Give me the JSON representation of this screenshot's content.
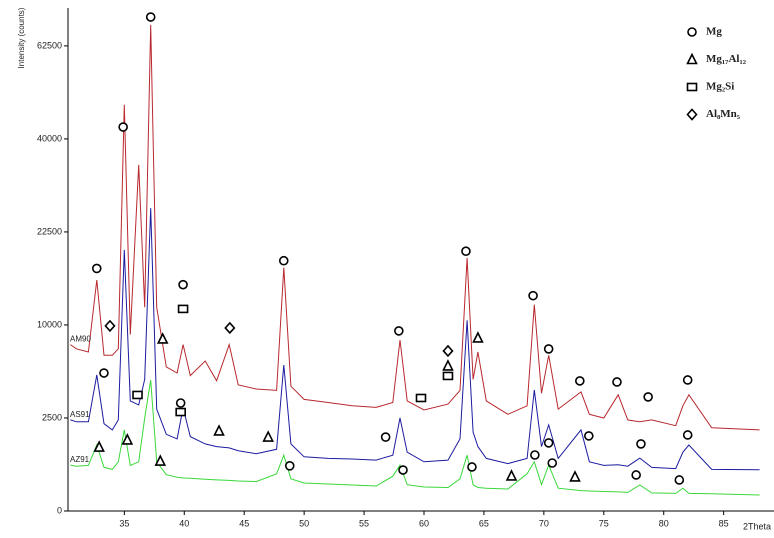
{
  "chart_data": {
    "type": "line",
    "y_label": "Intensity (counts)",
    "x_label": "2Theta",
    "xlim": [
      30.3,
      89.2
    ],
    "xticks": [
      35,
      40,
      45,
      50,
      55,
      60,
      65,
      70,
      75,
      80,
      85
    ],
    "ylim": [
      0,
      73100
    ],
    "yticks": [
      0,
      2500,
      10000,
      22500,
      40000,
      62500
    ],
    "yscale": "sqrt",
    "x": [
      30.5,
      31,
      32,
      32.7,
      33.3,
      34,
      34.5,
      35.0,
      35.5,
      36.2,
      36.7,
      37.2,
      37.7,
      38.5,
      39.4,
      39.9,
      40.5,
      41.75,
      42.7,
      43.75,
      44.5,
      46,
      47.7,
      48.3,
      48.9,
      50,
      52,
      54,
      56,
      57.4,
      58.0,
      58.6,
      60,
      62,
      63.0,
      63.6,
      64.1,
      64.5,
      65.2,
      67,
      68.6,
      69.2,
      69.8,
      70.4,
      71.2,
      73.1,
      73.8,
      75,
      76.2,
      77,
      78,
      79,
      81,
      81.6,
      82.1,
      84,
      88
    ],
    "series": [
      {
        "name": "AM90",
        "color": "#b8282e",
        "values": [
          8000,
          7600,
          7300,
          15400,
          7000,
          7000,
          7600,
          47700,
          9000,
          34600,
          12000,
          68300,
          12000,
          6000,
          5500,
          8000,
          5300,
          6500,
          4900,
          8000,
          4600,
          4300,
          4200,
          17100,
          4500,
          3600,
          3400,
          3200,
          3100,
          3400,
          8450,
          3500,
          2950,
          3300,
          4200,
          18500,
          5000,
          7300,
          3500,
          2700,
          3200,
          12300,
          4000,
          7000,
          3000,
          4100,
          2700,
          2500,
          3900,
          2400,
          2300,
          2400,
          2100,
          3200,
          3900,
          2000,
          1900
        ]
      },
      {
        "name": "AS91",
        "color": "#1c1ca0",
        "values": [
          2400,
          2300,
          2300,
          5350,
          2200,
          1900,
          2400,
          19700,
          3500,
          3250,
          5000,
          26500,
          3000,
          1700,
          1500,
          3070,
          1600,
          1300,
          1200,
          1150,
          1050,
          950,
          1100,
          6160,
          1300,
          850,
          800,
          780,
          750,
          900,
          2500,
          1000,
          700,
          750,
          1500,
          10500,
          1800,
          1200,
          800,
          650,
          800,
          4230,
          1200,
          2140,
          800,
          1900,
          700,
          600,
          620,
          580,
          810,
          550,
          520,
          1000,
          1260,
          500,
          490
        ]
      },
      {
        "name": "AZ91",
        "color": "#3ad83a",
        "values": [
          610,
          580,
          600,
          1260,
          550,
          500,
          700,
          1900,
          600,
          700,
          2500,
          4960,
          700,
          380,
          330,
          315,
          310,
          290,
          280,
          270,
          260,
          250,
          400,
          900,
          300,
          226,
          210,
          195,
          180,
          350,
          610,
          200,
          166,
          160,
          300,
          900,
          200,
          160,
          150,
          140,
          400,
          700,
          200,
          610,
          150,
          120,
          115,
          110,
          105,
          100,
          195,
          95,
          90,
          150,
          90,
          85,
          74
        ]
      }
    ],
    "phases": [
      "Mg",
      "Mg₁₇Al₁₂",
      "Mg₂Si",
      "Al₈Mn₅"
    ],
    "markers": [
      {
        "phase": 0,
        "x": 32.7,
        "y": 17000
      },
      {
        "phase": 0,
        "x": 34.9,
        "y": 42600
      },
      {
        "phase": 0,
        "x": 37.2,
        "y": 70500
      },
      {
        "phase": 0,
        "x": 39.9,
        "y": 14800
      },
      {
        "phase": 0,
        "x": 39.7,
        "y": 3370
      },
      {
        "phase": 0,
        "x": 33.3,
        "y": 5500
      },
      {
        "phase": 0,
        "x": 48.3,
        "y": 18100
      },
      {
        "phase": 0,
        "x": 48.8,
        "y": 590
      },
      {
        "phase": 0,
        "x": 57.9,
        "y": 9370
      },
      {
        "phase": 0,
        "x": 56.8,
        "y": 1580
      },
      {
        "phase": 0,
        "x": 58.25,
        "y": 485
      },
      {
        "phase": 0,
        "x": 63.5,
        "y": 19500
      },
      {
        "phase": 0,
        "x": 64.0,
        "y": 560
      },
      {
        "phase": 0,
        "x": 69.1,
        "y": 13400
      },
      {
        "phase": 0,
        "x": 70.4,
        "y": 7590
      },
      {
        "phase": 0,
        "x": 70.4,
        "y": 1340
      },
      {
        "phase": 0,
        "x": 69.25,
        "y": 906
      },
      {
        "phase": 0,
        "x": 70.7,
        "y": 666
      },
      {
        "phase": 0,
        "x": 73.0,
        "y": 4890
      },
      {
        "phase": 0,
        "x": 73.75,
        "y": 1630
      },
      {
        "phase": 0,
        "x": 76.1,
        "y": 4810
      },
      {
        "phase": 0,
        "x": 78.7,
        "y": 3760
      },
      {
        "phase": 0,
        "x": 78.1,
        "y": 1300
      },
      {
        "phase": 0,
        "x": 77.7,
        "y": 375
      },
      {
        "phase": 0,
        "x": 82.0,
        "y": 4960
      },
      {
        "phase": 0,
        "x": 82.0,
        "y": 1670
      },
      {
        "phase": 0,
        "x": 81.3,
        "y": 278
      },
      {
        "phase": 1,
        "x": 38.2,
        "y": 8550
      },
      {
        "phase": 1,
        "x": 32.9,
        "y": 1180
      },
      {
        "phase": 1,
        "x": 35.25,
        "y": 1460
      },
      {
        "phase": 1,
        "x": 38.0,
        "y": 720
      },
      {
        "phase": 1,
        "x": 42.9,
        "y": 1850
      },
      {
        "phase": 1,
        "x": 47.0,
        "y": 1580
      },
      {
        "phase": 1,
        "x": 62.0,
        "y": 6080
      },
      {
        "phase": 1,
        "x": 64.5,
        "y": 8650
      },
      {
        "phase": 1,
        "x": 67.3,
        "y": 355
      },
      {
        "phase": 1,
        "x": 72.6,
        "y": 335
      },
      {
        "phase": 2,
        "x": 39.9,
        "y": 11800
      },
      {
        "phase": 2,
        "x": 36.1,
        "y": 3890
      },
      {
        "phase": 2,
        "x": 39.7,
        "y": 2830
      },
      {
        "phase": 2,
        "x": 59.75,
        "y": 3690
      },
      {
        "phase": 2,
        "x": 62.0,
        "y": 5270
      },
      {
        "phase": 3,
        "x": 33.8,
        "y": 9900
      },
      {
        "phase": 3,
        "x": 43.8,
        "y": 9680
      },
      {
        "phase": 3,
        "x": 62.0,
        "y": 7400
      }
    ]
  }
}
